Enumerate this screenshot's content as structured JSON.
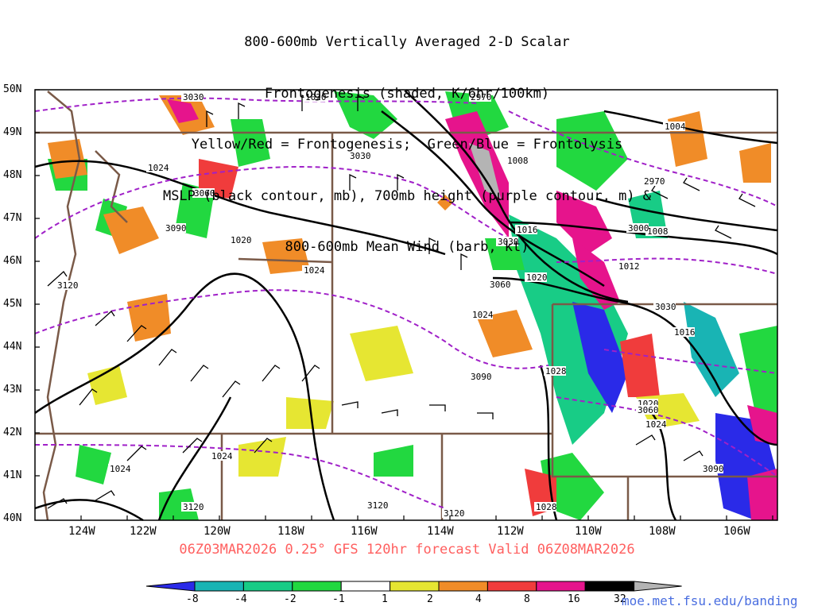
{
  "title_lines": [
    "800-600mb Vertically Averaged 2-D Scalar",
    "Frontogenesis (shaded, K/6hr/100km)",
    "Yellow/Red = Frontogenesis;  Green/Blue = Frontolysis",
    "MSLP (black contour, mb), 700mb height (purple contour, m) &",
    "800-600mb Mean Wind (barb, kt)"
  ],
  "lat_labels": [
    "50N",
    "49N",
    "48N",
    "47N",
    "46N",
    "45N",
    "44N",
    "43N",
    "42N",
    "41N",
    "40N"
  ],
  "lon_labels": [
    "124W",
    "122W",
    "120W",
    "118W",
    "116W",
    "114W",
    "112W",
    "110W",
    "108W",
    "106W"
  ],
  "valid_line": "06Z03MAR2026 0.25° GFS 120hr forecast Valid 06Z08MAR2026",
  "colorbar": {
    "labels": [
      "-8",
      "-4",
      "-2",
      "-1",
      "1",
      "2",
      "4",
      "8",
      "16",
      "32"
    ],
    "colors": [
      "#2a2ae8",
      "#19b4b4",
      "#18cc86",
      "#22d840",
      "#ffffff",
      "#e6e632",
      "#f08c28",
      "#f03c3c",
      "#e6148c",
      "#000000",
      "#b4b4b4"
    ]
  },
  "contour_labels": {
    "mslp": [
      "1020",
      "1024",
      "1020",
      "1024",
      "1008",
      "1016",
      "1020",
      "1004",
      "1008",
      "1012",
      "1016",
      "1024",
      "1028",
      "1020",
      "1024",
      "1024",
      "1024",
      "1028",
      "1028"
    ],
    "height": [
      "3030",
      "2970",
      "3030",
      "3060",
      "3090",
      "3120",
      "3030",
      "3060",
      "2970",
      "3000",
      "3090",
      "3030",
      "3060",
      "3090",
      "3120",
      "3120",
      "3120",
      "3060",
      "3090"
    ]
  },
  "credit": "moe.met.fsu.edu/banding"
}
